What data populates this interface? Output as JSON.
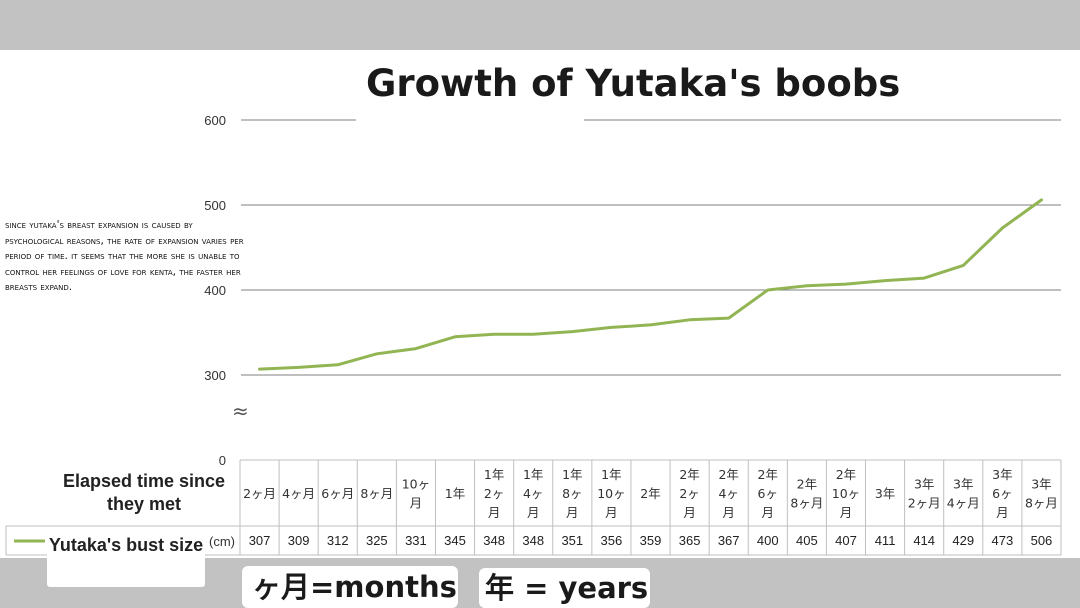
{
  "title": "Growth of Yutaka's boobs",
  "note": "Since Yutaka's breast expansion is caused by psychological reasons, the rate of expansion varies per period of time. It seems that the more she is unable to control her feelings of love for Kenta, the faster her breasts expand.",
  "table": {
    "elapsed_label": "Elapsed time since they met",
    "series_label": "Yutaka's bust size",
    "unit": "(cm)"
  },
  "key": {
    "months": "ヶ月=months",
    "years": "年 = years"
  },
  "colors": {
    "line": "#92b554",
    "grid": "#7f7f7f",
    "border": "#bfbfbf"
  },
  "chart_data": {
    "type": "line",
    "title": "Growth of Yutaka's boobs",
    "categories": [
      [
        "2ヶ月"
      ],
      [
        "4ヶ月"
      ],
      [
        "6ヶ月"
      ],
      [
        "8ヶ月"
      ],
      [
        "10ヶ",
        "月"
      ],
      [
        "1年"
      ],
      [
        "1年",
        "2ヶ",
        "月"
      ],
      [
        "1年",
        "4ヶ",
        "月"
      ],
      [
        "1年",
        "8ヶ",
        "月"
      ],
      [
        "1年",
        "10ヶ",
        "月"
      ],
      [
        "2年"
      ],
      [
        "2年",
        "2ヶ",
        "月"
      ],
      [
        "2年",
        "4ヶ",
        "月"
      ],
      [
        "2年",
        "6ヶ",
        "月"
      ],
      [
        "2年",
        "8ヶ月"
      ],
      [
        "2年",
        "10ヶ",
        "月"
      ],
      [
        "3年"
      ],
      [
        "3年",
        "2ヶ月"
      ],
      [
        "3年",
        "4ヶ月"
      ],
      [
        "3年",
        "6ヶ",
        "月"
      ],
      [
        "3年",
        "8ヶ月"
      ]
    ],
    "series": [
      {
        "name": "Yutaka's bust size",
        "values": [
          307,
          309,
          312,
          325,
          331,
          345,
          348,
          348,
          351,
          356,
          359,
          365,
          367,
          400,
          405,
          407,
          411,
          414,
          429,
          473,
          506
        ]
      }
    ],
    "y_ticks": [
      0,
      300,
      400,
      500,
      600
    ],
    "ylim": [
      0,
      600
    ],
    "axis_break": "≈",
    "grid": true
  }
}
